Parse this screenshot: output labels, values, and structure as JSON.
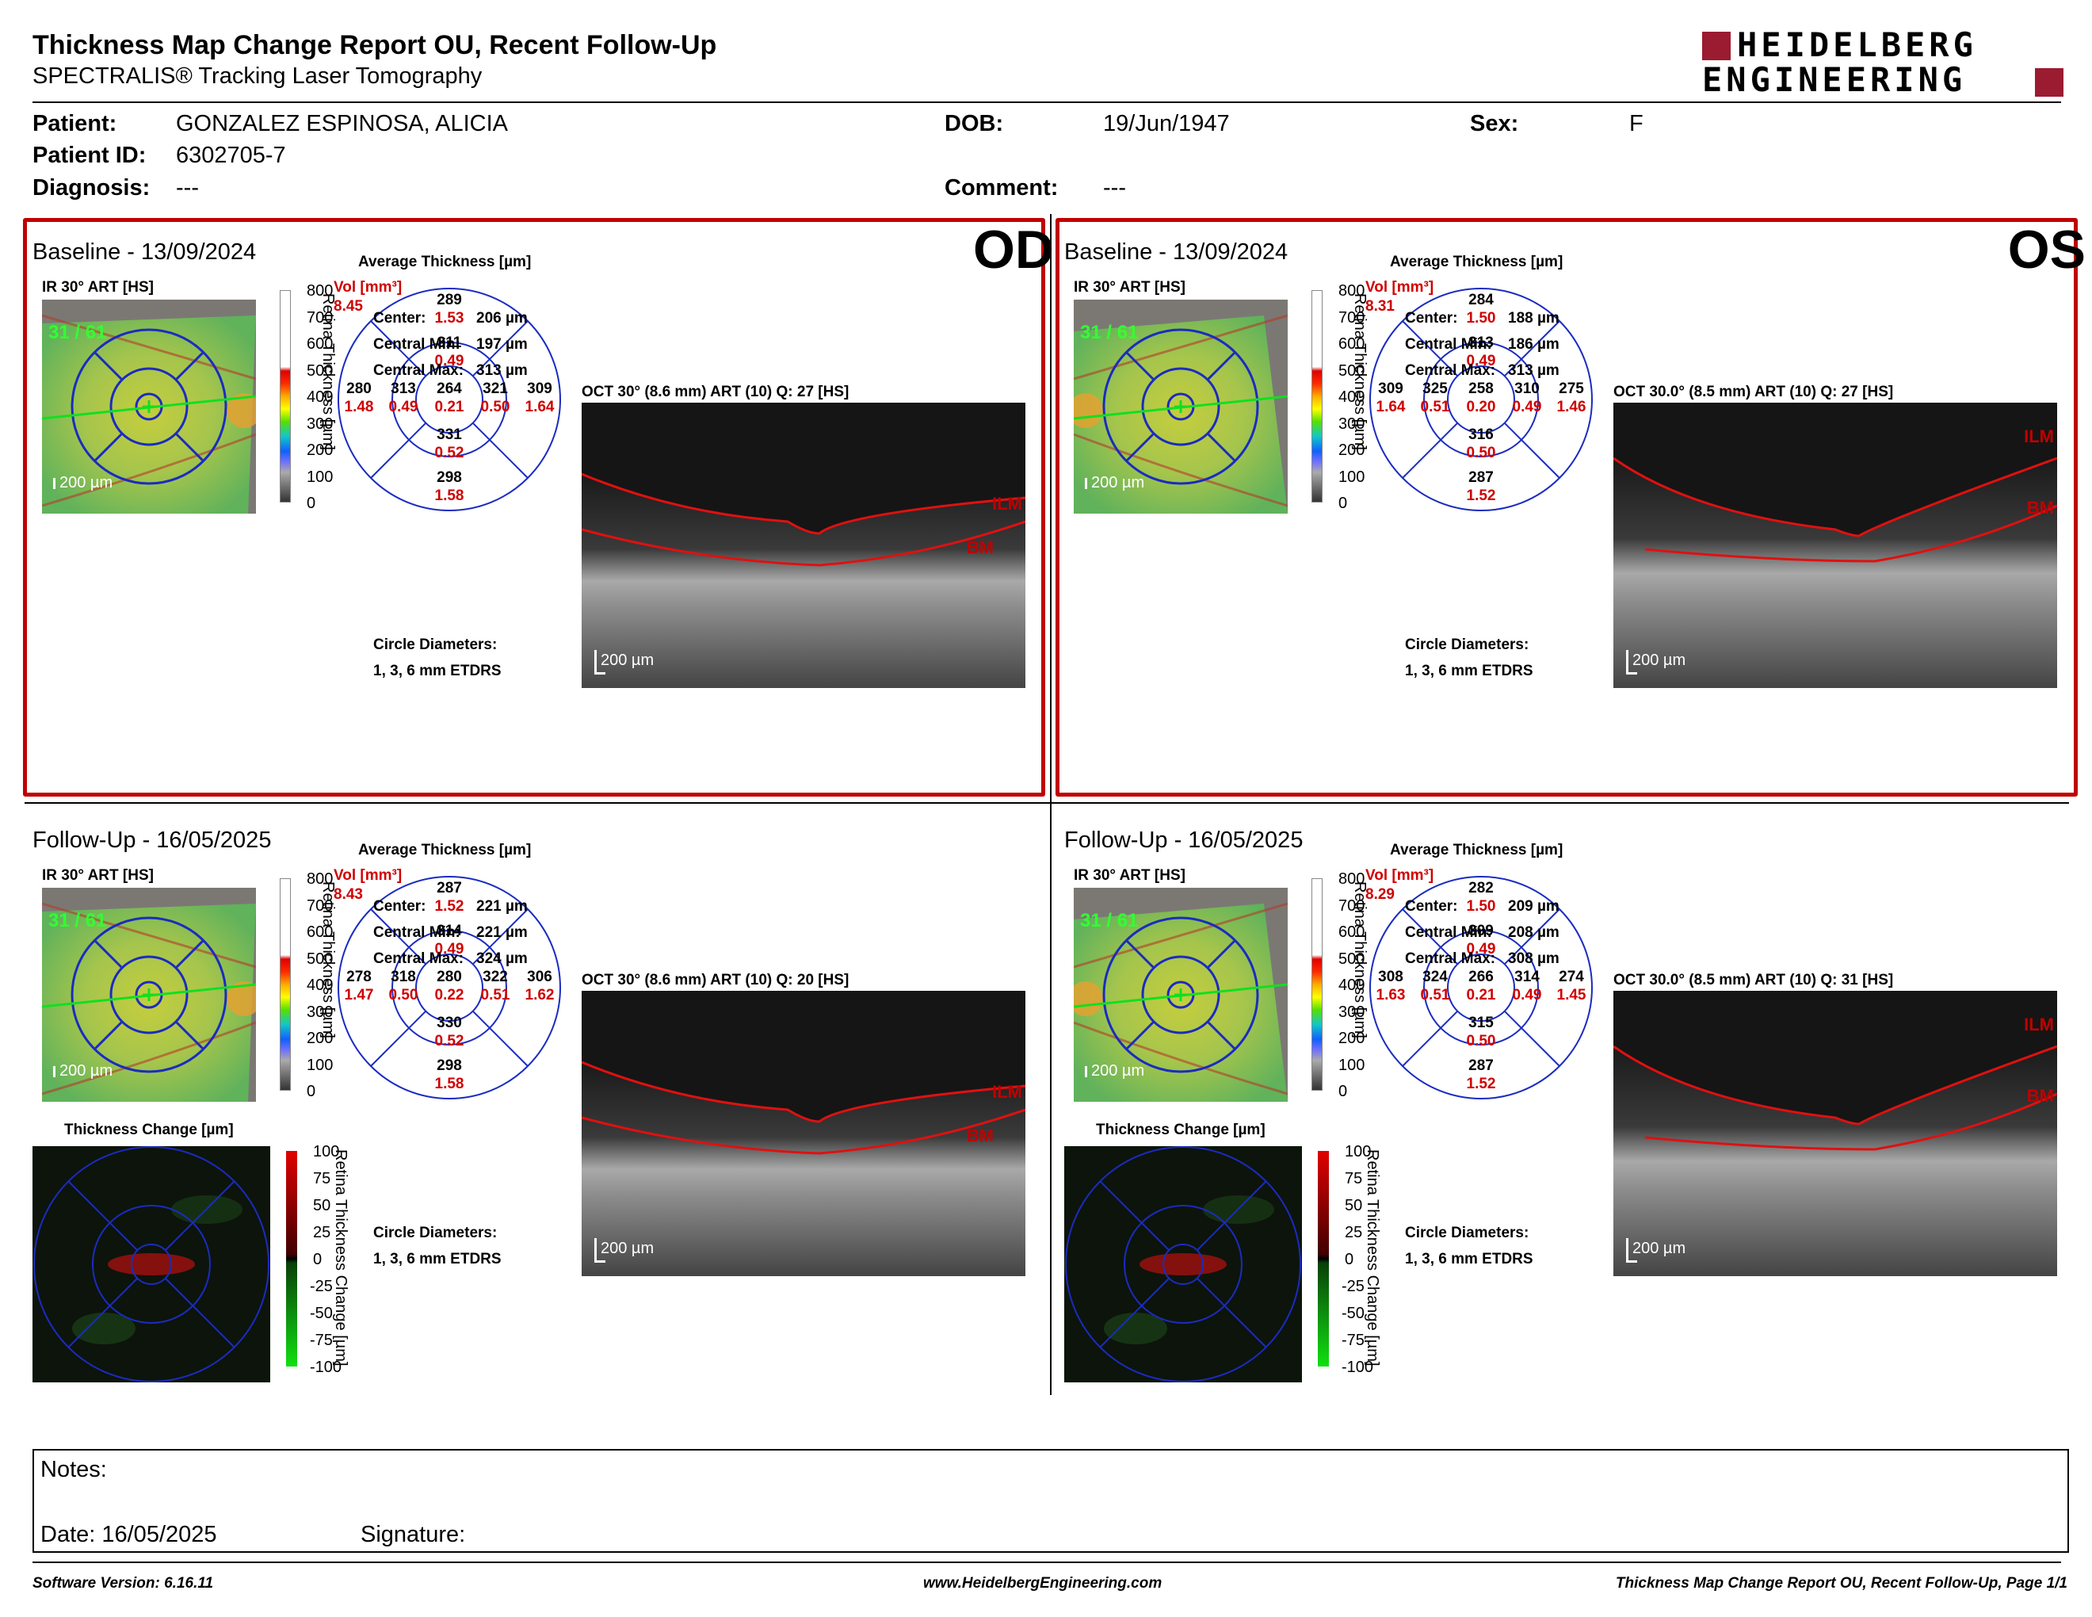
{
  "report": {
    "title": "Thickness Map Change Report OU, Recent Follow-Up",
    "subtitle": "SPECTRALIS® Tracking Laser Tomography",
    "logo_line1": "HEIDELBERG",
    "logo_line2": "ENGINEERING"
  },
  "patient": {
    "patient_label": "Patient:",
    "patient_value": "GONZALEZ ESPINOSA, ALICIA",
    "id_label": "Patient ID:",
    "id_value": "6302705-7",
    "diagnosis_label": "Diagnosis:",
    "diagnosis_value": "---",
    "dob_label": "DOB:",
    "dob_value": "19/Jun/1947",
    "comment_label": "Comment:",
    "comment_value": "---",
    "sex_label": "Sex:",
    "sex_value": "F"
  },
  "common": {
    "ir_label": "IR 30° ART [HS]",
    "avg_label": "Average Thickness [µm]",
    "vol_label": "Vol [mm³]",
    "scale_ticks": [
      "800",
      "700",
      "600",
      "500",
      "400",
      "300",
      "200",
      "100",
      "0"
    ],
    "scale_axis": "Retina Thickness [µm]",
    "change_label": "Thickness Change [µm]",
    "change_ticks": [
      "100",
      "75",
      "50",
      "25",
      "0",
      "-25",
      "-50",
      "-75",
      "-100"
    ],
    "change_axis": "Retina Thickness Change [µm]",
    "center_label": "Center:",
    "cmin_label": "Central Min:",
    "cmax_label": "Central Max:",
    "circle_label": "Circle Diameters:",
    "circle_value": "1, 3, 6 mm ETDRS",
    "bar_200": "200 µm",
    "ilm": "ILM",
    "bm": "BM",
    "fundus_overlay": "31 / 61"
  },
  "panels": [
    {
      "eye": "OD",
      "section": "Baseline - 13/09/2024",
      "vol": "8.45",
      "oct_label": "OCT 30° (8.6 mm) ART (10) Q: 27 [HS]",
      "center": "206 µm",
      "cmin": "197 µm",
      "cmax": "313 µm",
      "grid": {
        "c": [
          "264",
          "0.21"
        ],
        "si": [
          "311",
          "0.49"
        ],
        "so": [
          "289",
          "1.53"
        ],
        "ii": [
          "331",
          "0.52"
        ],
        "io": [
          "298",
          "1.58"
        ],
        "ti": [
          "313",
          "0.49"
        ],
        "to": [
          "280",
          "1.48"
        ],
        "ni": [
          "321",
          "0.50"
        ],
        "no": [
          "309",
          "1.64"
        ]
      }
    },
    {
      "eye": "OS",
      "section": "Baseline - 13/09/2024",
      "vol": "8.31",
      "oct_label": "OCT 30.0° (8.5 mm) ART (10) Q: 27 [HS]",
      "center": "188 µm",
      "cmin": "186 µm",
      "cmax": "313 µm",
      "grid": {
        "c": [
          "258",
          "0.20"
        ],
        "si": [
          "313",
          "0.49"
        ],
        "so": [
          "284",
          "1.50"
        ],
        "ii": [
          "316",
          "0.50"
        ],
        "io": [
          "287",
          "1.52"
        ],
        "ti": [
          "325",
          "0.51"
        ],
        "to": [
          "309",
          "1.64"
        ],
        "ni": [
          "310",
          "0.49"
        ],
        "no": [
          "275",
          "1.46"
        ]
      }
    },
    {
      "eye": "",
      "section": "Follow-Up - 16/05/2025",
      "vol": "8.43",
      "oct_label": "OCT 30° (8.6 mm) ART (10) Q: 20 [HS]",
      "center": "221 µm",
      "cmin": "221 µm",
      "cmax": "324 µm",
      "grid": {
        "c": [
          "280",
          "0.22"
        ],
        "si": [
          "314",
          "0.49"
        ],
        "so": [
          "287",
          "1.52"
        ],
        "ii": [
          "330",
          "0.52"
        ],
        "io": [
          "298",
          "1.58"
        ],
        "ti": [
          "318",
          "0.50"
        ],
        "to": [
          "278",
          "1.47"
        ],
        "ni": [
          "322",
          "0.51"
        ],
        "no": [
          "306",
          "1.62"
        ]
      }
    },
    {
      "eye": "",
      "section": "Follow-Up - 16/05/2025",
      "vol": "8.29",
      "oct_label": "OCT 30.0° (8.5 mm) ART (10) Q: 31 [HS]",
      "center": "209 µm",
      "cmin": "208 µm",
      "cmax": "308 µm",
      "grid": {
        "c": [
          "266",
          "0.21"
        ],
        "si": [
          "309",
          "0.49"
        ],
        "so": [
          "282",
          "1.50"
        ],
        "ii": [
          "315",
          "0.50"
        ],
        "io": [
          "287",
          "1.52"
        ],
        "ti": [
          "324",
          "0.51"
        ],
        "to": [
          "308",
          "1.63"
        ],
        "ni": [
          "314",
          "0.49"
        ],
        "no": [
          "274",
          "1.45"
        ]
      }
    }
  ],
  "notes": {
    "notes_label": "Notes:",
    "date_label": "Date: 16/05/2025",
    "signature_label": "Signature:"
  },
  "footer": {
    "left": "Software Version: 6.16.11",
    "center": "www.HeidelbergEngineering.com",
    "right": "Thickness Map Change Report OU, Recent Follow-Up, Page 1/1"
  }
}
